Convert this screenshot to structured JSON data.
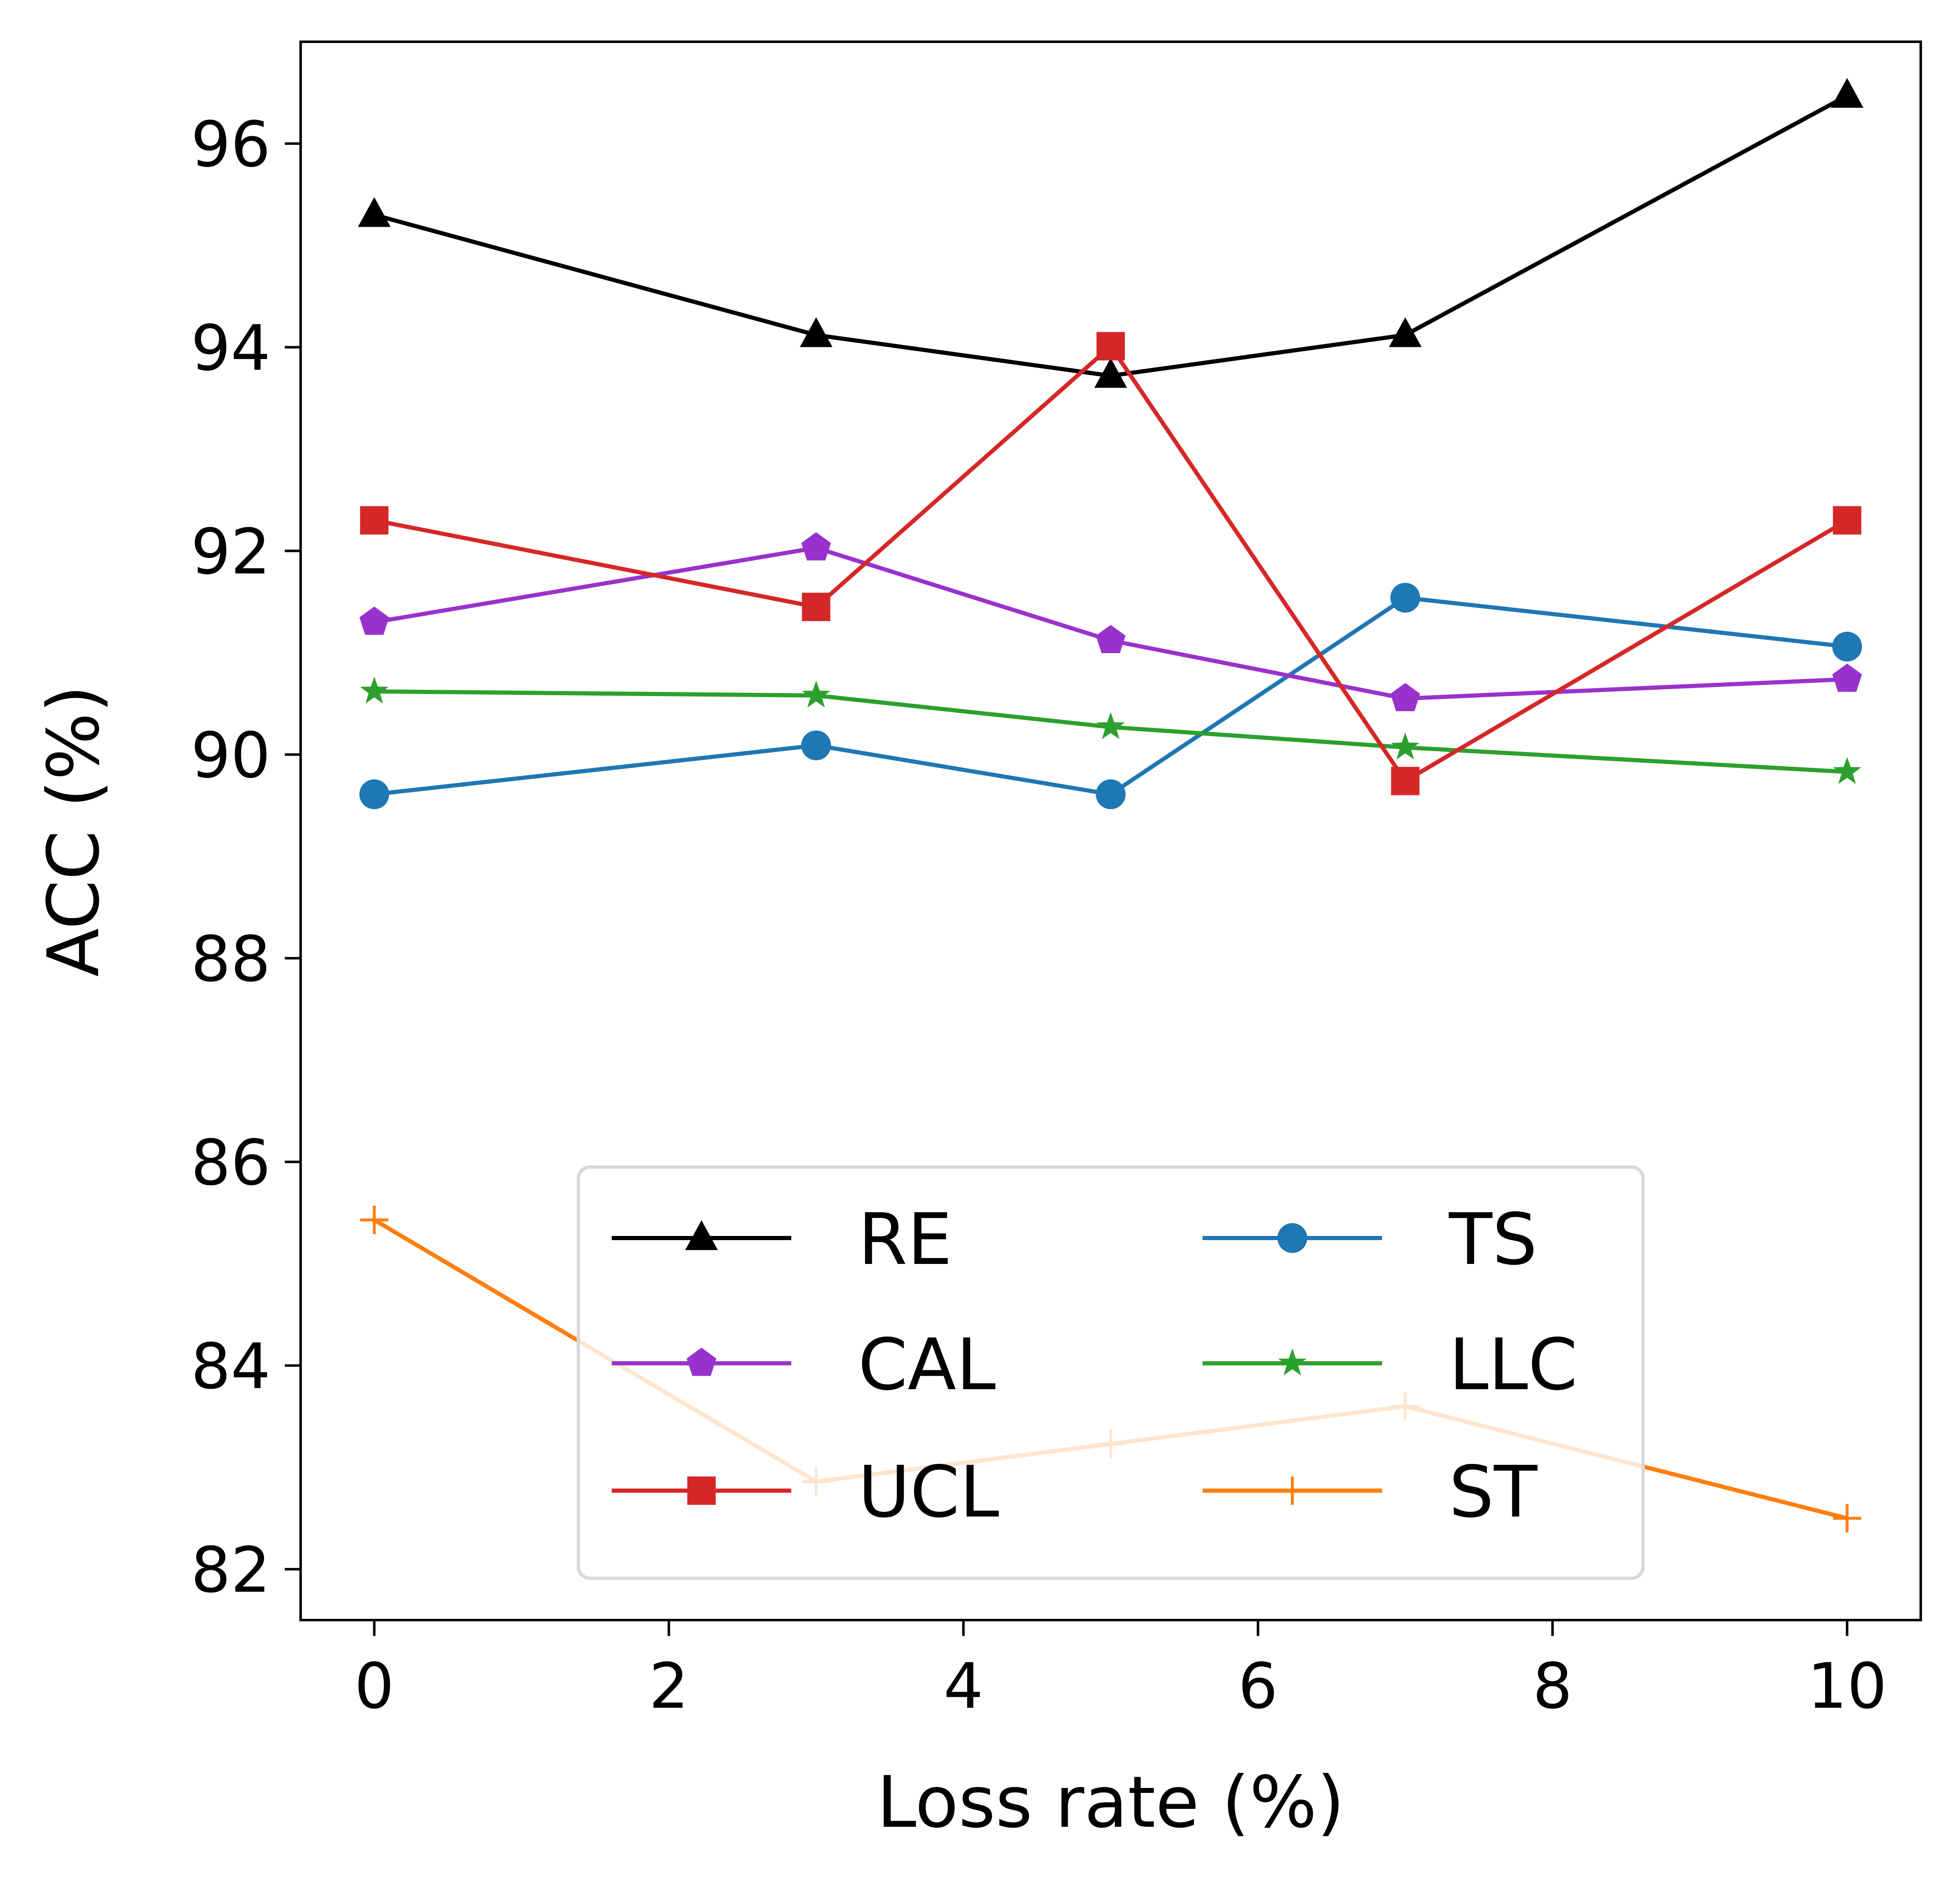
{
  "chart_data": {
    "type": "line",
    "title": "",
    "xlabel": "Loss rate (%)",
    "ylabel": "ACC (%)",
    "xlim": [
      -0.5,
      10.5
    ],
    "ylim": [
      81.5,
      97.0
    ],
    "xticks": [
      0,
      2,
      4,
      6,
      8,
      10
    ],
    "yticks": [
      82,
      84,
      86,
      88,
      90,
      92,
      94,
      96
    ],
    "grid": false,
    "legend_position": "lower-center",
    "legend_columns": 2,
    "x": [
      0,
      3,
      5,
      7,
      10
    ],
    "series": [
      {
        "name": "RE",
        "color": "#000000",
        "marker": "triangle",
        "values": [
          95.3,
          94.12,
          93.72,
          94.12,
          96.47
        ]
      },
      {
        "name": "TS",
        "color": "#1f77b4",
        "marker": "circle",
        "values": [
          89.61,
          90.09,
          89.61,
          91.54,
          91.06
        ]
      },
      {
        "name": "CAL",
        "color": "#9932cc",
        "marker": "pentagon",
        "values": [
          91.3,
          92.03,
          91.12,
          90.55,
          90.74
        ]
      },
      {
        "name": "LLC",
        "color": "#2ca02c",
        "marker": "star",
        "values": [
          90.62,
          90.58,
          90.27,
          90.07,
          89.83
        ]
      },
      {
        "name": "UCL",
        "color": "#d62728",
        "marker": "square",
        "values": [
          92.3,
          91.45,
          94.01,
          89.74,
          92.3
        ]
      },
      {
        "name": "ST",
        "color": "#ff7f0e",
        "marker": "plus",
        "values": [
          85.43,
          82.86,
          83.23,
          83.6,
          82.5
        ]
      }
    ]
  }
}
